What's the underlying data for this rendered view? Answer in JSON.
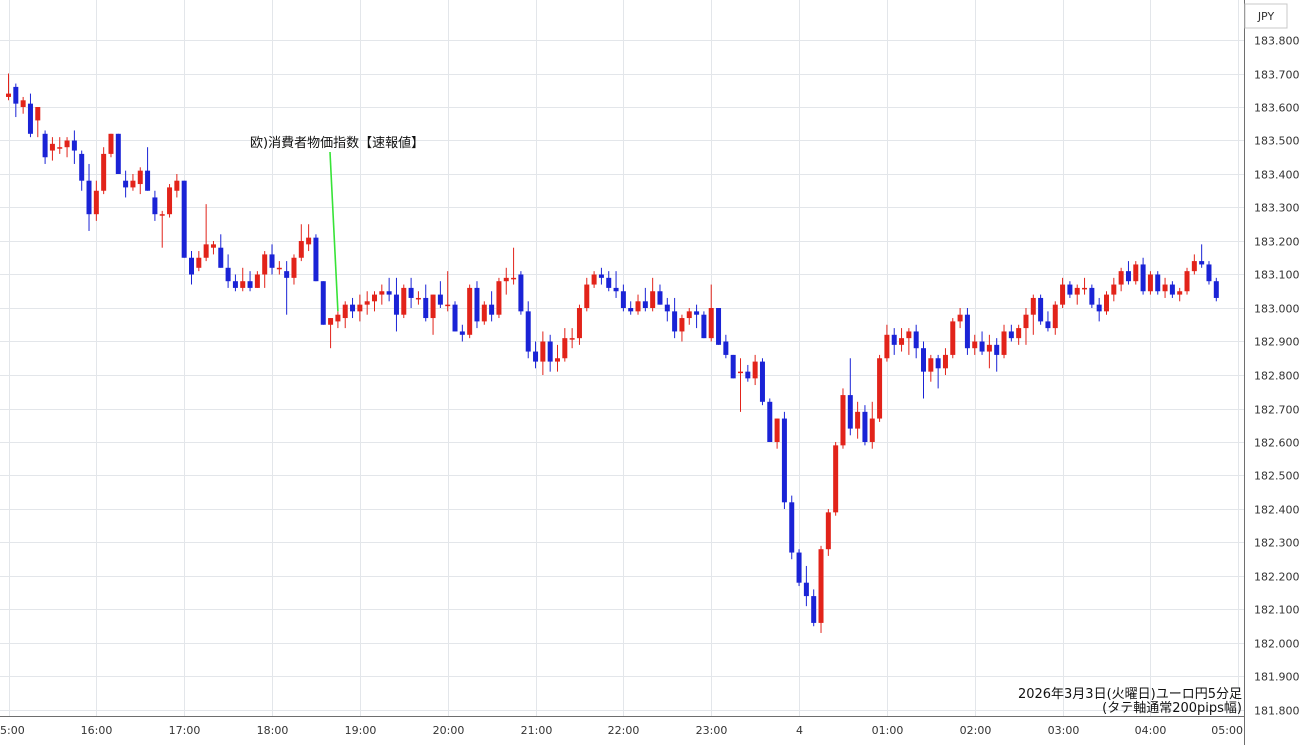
{
  "chart_data": {
    "type": "candlestick",
    "currency_label": "JPY",
    "y_ticks": [
      "181.800",
      "181.900",
      "182.000",
      "182.100",
      "182.200",
      "182.300",
      "182.400",
      "182.500",
      "182.600",
      "182.700",
      "182.800",
      "182.900",
      "183.000",
      "183.100",
      "183.200",
      "183.300",
      "183.400",
      "183.500",
      "183.600",
      "183.700",
      "183.800"
    ],
    "ylim": [
      181.78,
      183.85
    ],
    "x_ticks": [
      {
        "label": "5:00",
        "index": 0
      },
      {
        "label": "16:00",
        "index": 12
      },
      {
        "label": "17:00",
        "index": 24
      },
      {
        "label": "18:00",
        "index": 36
      },
      {
        "label": "19:00",
        "index": 48
      },
      {
        "label": "20:00",
        "index": 60
      },
      {
        "label": "21:00",
        "index": 72
      },
      {
        "label": "22:00",
        "index": 84
      },
      {
        "label": "23:00",
        "index": 96
      },
      {
        "label": "4",
        "index": 108
      },
      {
        "label": "01:00",
        "index": 120
      },
      {
        "label": "02:00",
        "index": 132
      },
      {
        "label": "03:00",
        "index": 144
      },
      {
        "label": "04:00",
        "index": 156
      },
      {
        "label": "05:00",
        "index": 168
      }
    ],
    "up_color": "#e2231a",
    "down_color": "#1a23d6",
    "candles": [
      {
        "o": 183.63,
        "h": 183.7,
        "l": 183.62,
        "c": 183.64
      },
      {
        "o": 183.66,
        "h": 183.67,
        "l": 183.57,
        "c": 183.61
      },
      {
        "o": 183.6,
        "h": 183.63,
        "l": 183.58,
        "c": 183.62
      },
      {
        "o": 183.61,
        "h": 183.64,
        "l": 183.51,
        "c": 183.52
      },
      {
        "o": 183.56,
        "h": 183.6,
        "l": 183.51,
        "c": 183.6
      },
      {
        "o": 183.52,
        "h": 183.53,
        "l": 183.43,
        "c": 183.45
      },
      {
        "o": 183.47,
        "h": 183.51,
        "l": 183.44,
        "c": 183.49
      },
      {
        "o": 183.48,
        "h": 183.51,
        "l": 183.46,
        "c": 183.48
      },
      {
        "o": 183.48,
        "h": 183.51,
        "l": 183.45,
        "c": 183.5
      },
      {
        "o": 183.5,
        "h": 183.53,
        "l": 183.43,
        "c": 183.47
      },
      {
        "o": 183.46,
        "h": 183.47,
        "l": 183.35,
        "c": 183.38
      },
      {
        "o": 183.38,
        "h": 183.43,
        "l": 183.23,
        "c": 183.28
      },
      {
        "o": 183.28,
        "h": 183.38,
        "l": 183.26,
        "c": 183.35
      },
      {
        "o": 183.35,
        "h": 183.48,
        "l": 183.34,
        "c": 183.46
      },
      {
        "o": 183.46,
        "h": 183.52,
        "l": 183.45,
        "c": 183.52
      },
      {
        "o": 183.52,
        "h": 183.52,
        "l": 183.4,
        "c": 183.4
      },
      {
        "o": 183.38,
        "h": 183.41,
        "l": 183.33,
        "c": 183.36
      },
      {
        "o": 183.36,
        "h": 183.4,
        "l": 183.35,
        "c": 183.38
      },
      {
        "o": 183.37,
        "h": 183.42,
        "l": 183.34,
        "c": 183.41
      },
      {
        "o": 183.41,
        "h": 183.48,
        "l": 183.35,
        "c": 183.35
      },
      {
        "o": 183.33,
        "h": 183.35,
        "l": 183.26,
        "c": 183.28
      },
      {
        "o": 183.28,
        "h": 183.29,
        "l": 183.18,
        "c": 183.28
      },
      {
        "o": 183.28,
        "h": 183.37,
        "l": 183.27,
        "c": 183.36
      },
      {
        "o": 183.35,
        "h": 183.4,
        "l": 183.33,
        "c": 183.38
      },
      {
        "o": 183.38,
        "h": 183.38,
        "l": 183.15,
        "c": 183.15
      },
      {
        "o": 183.15,
        "h": 183.17,
        "l": 183.07,
        "c": 183.1
      },
      {
        "o": 183.12,
        "h": 183.17,
        "l": 183.11,
        "c": 183.15
      },
      {
        "o": 183.15,
        "h": 183.31,
        "l": 183.14,
        "c": 183.19
      },
      {
        "o": 183.18,
        "h": 183.2,
        "l": 183.16,
        "c": 183.19
      },
      {
        "o": 183.18,
        "h": 183.22,
        "l": 183.12,
        "c": 183.12
      },
      {
        "o": 183.12,
        "h": 183.16,
        "l": 183.06,
        "c": 183.08
      },
      {
        "o": 183.08,
        "h": 183.1,
        "l": 183.05,
        "c": 183.06
      },
      {
        "o": 183.06,
        "h": 183.12,
        "l": 183.05,
        "c": 183.08
      },
      {
        "o": 183.08,
        "h": 183.11,
        "l": 183.05,
        "c": 183.06
      },
      {
        "o": 183.06,
        "h": 183.11,
        "l": 183.06,
        "c": 183.1
      },
      {
        "o": 183.1,
        "h": 183.17,
        "l": 183.06,
        "c": 183.16
      },
      {
        "o": 183.16,
        "h": 183.19,
        "l": 183.1,
        "c": 183.12
      },
      {
        "o": 183.12,
        "h": 183.14,
        "l": 183.1,
        "c": 183.12
      },
      {
        "o": 183.11,
        "h": 183.14,
        "l": 182.98,
        "c": 183.09
      },
      {
        "o": 183.09,
        "h": 183.16,
        "l": 183.07,
        "c": 183.15
      },
      {
        "o": 183.15,
        "h": 183.25,
        "l": 183.14,
        "c": 183.2
      },
      {
        "o": 183.19,
        "h": 183.25,
        "l": 183.17,
        "c": 183.21
      },
      {
        "o": 183.21,
        "h": 183.22,
        "l": 183.08,
        "c": 183.08
      },
      {
        "o": 183.08,
        "h": 183.08,
        "l": 182.95,
        "c": 182.95
      },
      {
        "o": 182.95,
        "h": 182.97,
        "l": 182.88,
        "c": 182.97
      },
      {
        "o": 182.96,
        "h": 182.99,
        "l": 182.94,
        "c": 182.98
      },
      {
        "o": 182.97,
        "h": 183.02,
        "l": 182.94,
        "c": 183.01
      },
      {
        "o": 183.01,
        "h": 183.03,
        "l": 182.97,
        "c": 182.99
      },
      {
        "o": 182.99,
        "h": 183.04,
        "l": 182.96,
        "c": 183.01
      },
      {
        "o": 183.01,
        "h": 183.05,
        "l": 182.98,
        "c": 183.02
      },
      {
        "o": 183.02,
        "h": 183.05,
        "l": 182.99,
        "c": 183.04
      },
      {
        "o": 183.04,
        "h": 183.07,
        "l": 183.01,
        "c": 183.05
      },
      {
        "o": 183.05,
        "h": 183.09,
        "l": 183.02,
        "c": 183.04
      },
      {
        "o": 183.04,
        "h": 183.09,
        "l": 182.93,
        "c": 182.98
      },
      {
        "o": 182.98,
        "h": 183.07,
        "l": 182.97,
        "c": 183.06
      },
      {
        "o": 183.06,
        "h": 183.09,
        "l": 183.0,
        "c": 183.03
      },
      {
        "o": 183.03,
        "h": 183.05,
        "l": 183.01,
        "c": 183.03
      },
      {
        "o": 183.03,
        "h": 183.07,
        "l": 182.96,
        "c": 182.97
      },
      {
        "o": 182.97,
        "h": 183.04,
        "l": 182.92,
        "c": 183.04
      },
      {
        "o": 183.04,
        "h": 183.08,
        "l": 183.0,
        "c": 183.01
      },
      {
        "o": 183.01,
        "h": 183.11,
        "l": 182.99,
        "c": 183.01
      },
      {
        "o": 183.01,
        "h": 183.02,
        "l": 182.93,
        "c": 182.93
      },
      {
        "o": 182.93,
        "h": 182.95,
        "l": 182.9,
        "c": 182.92
      },
      {
        "o": 182.92,
        "h": 183.07,
        "l": 182.91,
        "c": 183.06
      },
      {
        "o": 183.06,
        "h": 183.08,
        "l": 182.94,
        "c": 182.96
      },
      {
        "o": 182.96,
        "h": 183.02,
        "l": 182.95,
        "c": 183.01
      },
      {
        "o": 183.01,
        "h": 183.05,
        "l": 182.96,
        "c": 182.98
      },
      {
        "o": 182.98,
        "h": 183.09,
        "l": 182.97,
        "c": 183.08
      },
      {
        "o": 183.08,
        "h": 183.12,
        "l": 183.04,
        "c": 183.09
      },
      {
        "o": 183.09,
        "h": 183.18,
        "l": 183.07,
        "c": 183.09
      },
      {
        "o": 183.1,
        "h": 183.11,
        "l": 182.98,
        "c": 182.99
      },
      {
        "o": 182.99,
        "h": 183.02,
        "l": 182.85,
        "c": 182.87
      },
      {
        "o": 182.87,
        "h": 182.9,
        "l": 182.82,
        "c": 182.84
      },
      {
        "o": 182.84,
        "h": 182.93,
        "l": 182.8,
        "c": 182.9
      },
      {
        "o": 182.9,
        "h": 182.92,
        "l": 182.81,
        "c": 182.84
      },
      {
        "o": 182.84,
        "h": 182.89,
        "l": 182.81,
        "c": 182.85
      },
      {
        "o": 182.85,
        "h": 182.94,
        "l": 182.84,
        "c": 182.91
      },
      {
        "o": 182.91,
        "h": 182.94,
        "l": 182.88,
        "c": 182.91
      },
      {
        "o": 182.91,
        "h": 183.01,
        "l": 182.89,
        "c": 183.0
      },
      {
        "o": 183.0,
        "h": 183.09,
        "l": 182.99,
        "c": 183.07
      },
      {
        "o": 183.07,
        "h": 183.11,
        "l": 183.06,
        "c": 183.1
      },
      {
        "o": 183.1,
        "h": 183.12,
        "l": 183.07,
        "c": 183.09
      },
      {
        "o": 183.09,
        "h": 183.11,
        "l": 183.05,
        "c": 183.06
      },
      {
        "o": 183.06,
        "h": 183.11,
        "l": 183.03,
        "c": 183.05
      },
      {
        "o": 183.05,
        "h": 183.07,
        "l": 182.99,
        "c": 183.0
      },
      {
        "o": 183.0,
        "h": 183.02,
        "l": 182.98,
        "c": 182.99
      },
      {
        "o": 182.99,
        "h": 183.04,
        "l": 182.98,
        "c": 183.02
      },
      {
        "o": 183.02,
        "h": 183.06,
        "l": 182.99,
        "c": 183.0
      },
      {
        "o": 183.0,
        "h": 183.09,
        "l": 182.99,
        "c": 183.05
      },
      {
        "o": 183.05,
        "h": 183.07,
        "l": 183.01,
        "c": 183.01
      },
      {
        "o": 183.01,
        "h": 183.03,
        "l": 182.96,
        "c": 182.99
      },
      {
        "o": 182.99,
        "h": 183.03,
        "l": 182.91,
        "c": 182.93
      },
      {
        "o": 182.93,
        "h": 182.98,
        "l": 182.9,
        "c": 182.97
      },
      {
        "o": 182.97,
        "h": 183.0,
        "l": 182.95,
        "c": 182.99
      },
      {
        "o": 182.99,
        "h": 183.01,
        "l": 182.94,
        "c": 182.98
      },
      {
        "o": 182.98,
        "h": 182.99,
        "l": 182.91,
        "c": 182.91
      },
      {
        "o": 182.91,
        "h": 183.07,
        "l": 182.9,
        "c": 183.0
      },
      {
        "o": 183.0,
        "h": 183.0,
        "l": 182.89,
        "c": 182.89
      },
      {
        "o": 182.9,
        "h": 182.92,
        "l": 182.85,
        "c": 182.86
      },
      {
        "o": 182.86,
        "h": 182.86,
        "l": 182.79,
        "c": 182.79
      },
      {
        "o": 182.81,
        "h": 182.85,
        "l": 182.69,
        "c": 182.81
      },
      {
        "o": 182.81,
        "h": 182.83,
        "l": 182.78,
        "c": 182.79
      },
      {
        "o": 182.79,
        "h": 182.86,
        "l": 182.77,
        "c": 182.84
      },
      {
        "o": 182.84,
        "h": 182.85,
        "l": 182.71,
        "c": 182.72
      },
      {
        "o": 182.72,
        "h": 182.73,
        "l": 182.6,
        "c": 182.6
      },
      {
        "o": 182.6,
        "h": 182.67,
        "l": 182.58,
        "c": 182.67
      },
      {
        "o": 182.67,
        "h": 182.69,
        "l": 182.4,
        "c": 182.42
      },
      {
        "o": 182.42,
        "h": 182.44,
        "l": 182.25,
        "c": 182.27
      },
      {
        "o": 182.27,
        "h": 182.28,
        "l": 182.17,
        "c": 182.18
      },
      {
        "o": 182.18,
        "h": 182.23,
        "l": 182.11,
        "c": 182.14
      },
      {
        "o": 182.14,
        "h": 182.16,
        "l": 182.05,
        "c": 182.06
      },
      {
        "o": 182.06,
        "h": 182.29,
        "l": 182.03,
        "c": 182.28
      },
      {
        "o": 182.28,
        "h": 182.4,
        "l": 182.26,
        "c": 182.39
      },
      {
        "o": 182.39,
        "h": 182.6,
        "l": 182.38,
        "c": 182.59
      },
      {
        "o": 182.59,
        "h": 182.76,
        "l": 182.58,
        "c": 182.74
      },
      {
        "o": 182.74,
        "h": 182.85,
        "l": 182.62,
        "c": 182.64
      },
      {
        "o": 182.64,
        "h": 182.72,
        "l": 182.61,
        "c": 182.69
      },
      {
        "o": 182.69,
        "h": 182.71,
        "l": 182.59,
        "c": 182.6
      },
      {
        "o": 182.6,
        "h": 182.72,
        "l": 182.58,
        "c": 182.67
      },
      {
        "o": 182.67,
        "h": 182.86,
        "l": 182.66,
        "c": 182.85
      },
      {
        "o": 182.85,
        "h": 182.95,
        "l": 182.84,
        "c": 182.92
      },
      {
        "o": 182.92,
        "h": 182.94,
        "l": 182.86,
        "c": 182.89
      },
      {
        "o": 182.89,
        "h": 182.94,
        "l": 182.87,
        "c": 182.91
      },
      {
        "o": 182.91,
        "h": 182.94,
        "l": 182.86,
        "c": 182.93
      },
      {
        "o": 182.93,
        "h": 182.95,
        "l": 182.85,
        "c": 182.88
      },
      {
        "o": 182.88,
        "h": 182.9,
        "l": 182.73,
        "c": 182.81
      },
      {
        "o": 182.81,
        "h": 182.86,
        "l": 182.78,
        "c": 182.85
      },
      {
        "o": 182.85,
        "h": 182.86,
        "l": 182.76,
        "c": 182.82
      },
      {
        "o": 182.82,
        "h": 182.88,
        "l": 182.8,
        "c": 182.86
      },
      {
        "o": 182.86,
        "h": 182.97,
        "l": 182.85,
        "c": 182.96
      },
      {
        "o": 182.96,
        "h": 183.0,
        "l": 182.94,
        "c": 182.98
      },
      {
        "o": 182.98,
        "h": 183.0,
        "l": 182.86,
        "c": 182.88
      },
      {
        "o": 182.88,
        "h": 182.92,
        "l": 182.86,
        "c": 182.9
      },
      {
        "o": 182.9,
        "h": 182.93,
        "l": 182.86,
        "c": 182.87
      },
      {
        "o": 182.87,
        "h": 182.92,
        "l": 182.82,
        "c": 182.89
      },
      {
        "o": 182.89,
        "h": 182.91,
        "l": 182.81,
        "c": 182.86
      },
      {
        "o": 182.86,
        "h": 182.95,
        "l": 182.85,
        "c": 182.93
      },
      {
        "o": 182.93,
        "h": 182.95,
        "l": 182.9,
        "c": 182.91
      },
      {
        "o": 182.91,
        "h": 182.95,
        "l": 182.89,
        "c": 182.94
      },
      {
        "o": 182.94,
        "h": 183.0,
        "l": 182.89,
        "c": 182.98
      },
      {
        "o": 182.98,
        "h": 183.04,
        "l": 182.92,
        "c": 183.03
      },
      {
        "o": 183.03,
        "h": 183.04,
        "l": 182.95,
        "c": 182.96
      },
      {
        "o": 182.96,
        "h": 182.99,
        "l": 182.93,
        "c": 182.94
      },
      {
        "o": 182.94,
        "h": 183.02,
        "l": 182.92,
        "c": 183.01
      },
      {
        "o": 183.01,
        "h": 183.09,
        "l": 183.0,
        "c": 183.07
      },
      {
        "o": 183.07,
        "h": 183.08,
        "l": 183.03,
        "c": 183.04
      },
      {
        "o": 183.04,
        "h": 183.07,
        "l": 183.01,
        "c": 183.06
      },
      {
        "o": 183.06,
        "h": 183.09,
        "l": 183.04,
        "c": 183.06
      },
      {
        "o": 183.06,
        "h": 183.07,
        "l": 183.0,
        "c": 183.01
      },
      {
        "o": 183.01,
        "h": 183.03,
        "l": 182.96,
        "c": 182.99
      },
      {
        "o": 182.99,
        "h": 183.05,
        "l": 182.98,
        "c": 183.04
      },
      {
        "o": 183.04,
        "h": 183.09,
        "l": 183.02,
        "c": 183.07
      },
      {
        "o": 183.07,
        "h": 183.12,
        "l": 183.05,
        "c": 183.11
      },
      {
        "o": 183.11,
        "h": 183.14,
        "l": 183.07,
        "c": 183.08
      },
      {
        "o": 183.08,
        "h": 183.14,
        "l": 183.07,
        "c": 183.13
      },
      {
        "o": 183.13,
        "h": 183.15,
        "l": 183.04,
        "c": 183.05
      },
      {
        "o": 183.05,
        "h": 183.11,
        "l": 183.04,
        "c": 183.1
      },
      {
        "o": 183.1,
        "h": 183.11,
        "l": 183.04,
        "c": 183.05
      },
      {
        "o": 183.05,
        "h": 183.09,
        "l": 183.03,
        "c": 183.07
      },
      {
        "o": 183.07,
        "h": 183.08,
        "l": 183.03,
        "c": 183.04
      },
      {
        "o": 183.04,
        "h": 183.06,
        "l": 183.02,
        "c": 183.05
      },
      {
        "o": 183.05,
        "h": 183.12,
        "l": 183.04,
        "c": 183.11
      },
      {
        "o": 183.11,
        "h": 183.16,
        "l": 183.1,
        "c": 183.14
      },
      {
        "o": 183.14,
        "h": 183.19,
        "l": 183.12,
        "c": 183.13
      },
      {
        "o": 183.13,
        "h": 183.14,
        "l": 183.07,
        "c": 183.08
      },
      {
        "o": 183.08,
        "h": 183.09,
        "l": 183.02,
        "c": 183.03
      }
    ],
    "annotation": {
      "text": "欧)消費者物価指数【速報値】",
      "candle_index": 45,
      "line_color": "#37e337"
    },
    "caption_lines": [
      "2026年3月3日(火曜日)ユーロ円5分足",
      "(タテ軸通常200pips幅)"
    ],
    "grid": true
  }
}
